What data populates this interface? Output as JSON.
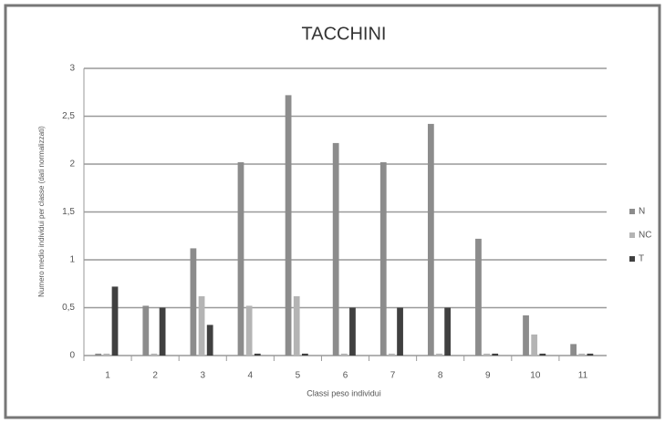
{
  "chart_data": {
    "type": "bar",
    "title": "TACCHINI",
    "x_label": "Classi peso individui",
    "y_label": "Numero medio individui per classe (dati normalizzati)",
    "categories": [
      "1",
      "2",
      "3",
      "4",
      "5",
      "6",
      "7",
      "8",
      "9",
      "10",
      "11"
    ],
    "series": [
      {
        "name": "N",
        "color": "#8c8c8c",
        "values": [
          0.02,
          0.52,
          1.12,
          2.02,
          2.72,
          2.22,
          2.02,
          2.42,
          1.22,
          0.42,
          0.12
        ]
      },
      {
        "name": "NC",
        "color": "#b4b4b4",
        "values": [
          0.02,
          0.02,
          0.62,
          0.52,
          0.62,
          0.02,
          0.02,
          0.02,
          0.02,
          0.22,
          0.02
        ]
      },
      {
        "name": "T",
        "color": "#404040",
        "values": [
          0.72,
          0.5,
          0.32,
          0.02,
          0.02,
          0.5,
          0.5,
          0.5,
          0.02,
          0.02,
          0.02
        ]
      }
    ],
    "ylim": [
      0,
      3
    ],
    "yticks": [
      0,
      {
        "value": 0.5,
        "label": "0,5"
      },
      1,
      {
        "value": 1.5,
        "label": "1,5"
      },
      2,
      {
        "value": 2.5,
        "label": "2,5"
      },
      3
    ],
    "grid": true,
    "legend": "right"
  }
}
